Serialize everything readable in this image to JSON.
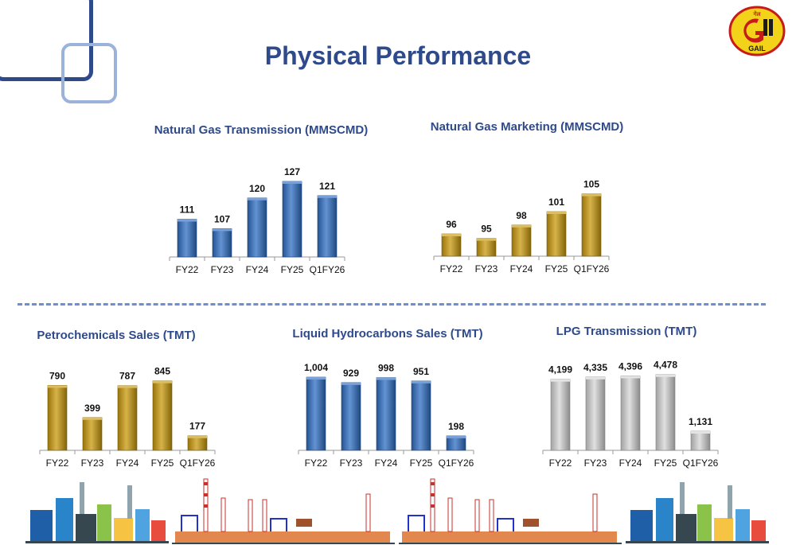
{
  "page": {
    "title": "Physical Performance"
  },
  "logo": {
    "text": "GAIL",
    "script_text": "गेल"
  },
  "colors": {
    "title_blue": "#2e4a8a",
    "divider": "#6d8ed3"
  },
  "chart_data": [
    {
      "id": "ng_transmission",
      "type": "bar",
      "title": "Natural Gas Transmission (MMSCMD)",
      "categories": [
        "FY22",
        "FY23",
        "FY24",
        "FY25",
        "Q1FY26"
      ],
      "values": [
        111,
        107,
        120,
        127,
        121
      ],
      "labels": [
        "111",
        "107",
        "120",
        "127",
        "121"
      ],
      "ylim": [
        95,
        128
      ],
      "color": "#2f6fc4",
      "xlabel": "",
      "ylabel": "",
      "grid": false,
      "legend": "none"
    },
    {
      "id": "ng_marketing",
      "type": "bar",
      "title": "Natural Gas Marketing (MMSCMD)",
      "categories": [
        "FY22",
        "FY23",
        "FY24",
        "FY25",
        "Q1FY26"
      ],
      "values": [
        96,
        95,
        98,
        101,
        105
      ],
      "labels": [
        "96",
        "95",
        "98",
        "101",
        "105"
      ],
      "ylim": [
        91,
        106
      ],
      "color": "#c99a0c",
      "xlabel": "",
      "ylabel": "",
      "grid": false,
      "legend": "none"
    },
    {
      "id": "petrochemicals",
      "type": "bar",
      "title": "Petrochemicals Sales (TMT)",
      "categories": [
        "FY22",
        "FY23",
        "FY24",
        "FY25",
        "Q1FY26"
      ],
      "values": [
        790,
        399,
        787,
        845,
        177
      ],
      "labels": [
        "790",
        "399",
        "787",
        "845",
        "177"
      ],
      "ylim": [
        0,
        900
      ],
      "color": "#c99a0c",
      "xlabel": "",
      "ylabel": "",
      "grid": false,
      "legend": "none"
    },
    {
      "id": "liquid_hydrocarbons",
      "type": "bar",
      "title": "Liquid Hydrocarbons Sales (TMT)",
      "categories": [
        "FY22",
        "FY23",
        "FY24",
        "FY25",
        "Q1FY26"
      ],
      "values": [
        1004,
        929,
        998,
        951,
        198
      ],
      "labels": [
        "1,004",
        "929",
        "998",
        "951",
        "198"
      ],
      "ylim": [
        0,
        1004
      ],
      "color": "#2f6fc4",
      "xlabel": "",
      "ylabel": "",
      "grid": false,
      "legend": "none"
    },
    {
      "id": "lpg_transmission",
      "type": "bar",
      "title": "LPG Transmission (TMT)",
      "categories": [
        "FY22",
        "FY23",
        "FY24",
        "FY25",
        "Q1FY26"
      ],
      "values": [
        4199,
        4335,
        4396,
        4478,
        1131
      ],
      "labels": [
        "4,199",
        "4,335",
        "4,396",
        "4,478",
        "1,131"
      ],
      "ylim": [
        0,
        4700
      ],
      "color": "#d6d6d6",
      "xlabel": "",
      "ylabel": "",
      "grid": false,
      "legend": "none"
    }
  ]
}
